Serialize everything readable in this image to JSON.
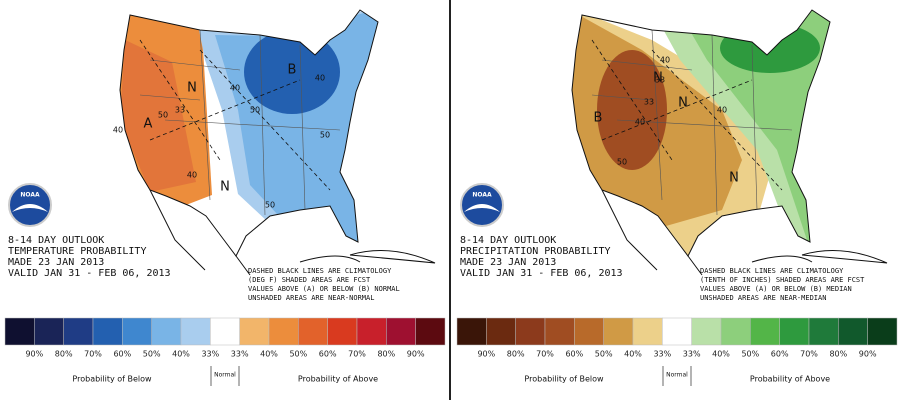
{
  "panels": [
    {
      "logo": "NOAA",
      "title_lines": [
        "8-14 DAY OUTLOOK",
        "TEMPERATURE PROBABILITY",
        "MADE  23 JAN 2013",
        "VALID  JAN 31 - FEB 06, 2013"
      ],
      "notes": [
        "DASHED BLACK LINES ARE CLIMATOLOGY",
        "(DEG F) SHADED AREAS ARE FCST",
        "VALUES ABOVE (A) OR BELOW (B) NORMAL",
        "UNSHADED AREAS ARE NEAR-NORMAL"
      ],
      "map_labels": [
        "A",
        "B",
        "N",
        "N",
        "40",
        "50",
        "33",
        "40",
        "40",
        "50",
        "40",
        "50",
        "50"
      ],
      "legend": {
        "colors": [
          "#0f1030",
          "#1a2457",
          "#1f3c85",
          "#2360b0",
          "#3f87cf",
          "#79b4e6",
          "#a9cdee",
          "#ffffff",
          "#f2b56a",
          "#ec8d3c",
          "#e2622b",
          "#d93a1f",
          "#c8202b",
          "#9e1030",
          "#5c0a10"
        ],
        "labels": [
          "90%",
          "80%",
          "70%",
          "60%",
          "50%",
          "40%",
          "33%",
          "33%",
          "40%",
          "50%",
          "60%",
          "70%",
          "80%",
          "90%"
        ],
        "below": "Probability of Below",
        "normal": "Normal",
        "above": "Probability of Above"
      }
    },
    {
      "logo": "NOAA",
      "title_lines": [
        "8-14 DAY OUTLOOK",
        "PRECIPITATION PROBABILITY",
        "MADE  23 JAN 2013",
        "VALID  JAN 31 - FEB 06, 2013"
      ],
      "notes": [
        "DASHED BLACK LINES ARE CLIMATOLOGY",
        "(TENTH OF INCHES) SHADED AREAS ARE FCST",
        "VALUES ABOVE (A) OR BELOW (B) MEDIAN",
        "UNSHADED AREAS ARE NEAR-MEDIAN"
      ],
      "map_labels": [
        "B",
        "N",
        "N",
        "N",
        "40",
        "33",
        "33",
        "40",
        "50",
        "40"
      ],
      "legend": {
        "colors": [
          "#3a1508",
          "#6b2a10",
          "#8c3a1c",
          "#a04d22",
          "#b86a2a",
          "#d09a45",
          "#ecd08a",
          "#ffffff",
          "#b9e0a8",
          "#8dcf7c",
          "#53b548",
          "#2e9a3e",
          "#1f7a3a",
          "#11592c",
          "#0a3d1a"
        ],
        "labels": [
          "90%",
          "80%",
          "70%",
          "60%",
          "50%",
          "40%",
          "33%",
          "33%",
          "40%",
          "50%",
          "60%",
          "70%",
          "80%",
          "90%"
        ],
        "below": "Probability of Below",
        "normal": "Normal",
        "above": "Probability of Above"
      }
    }
  ]
}
